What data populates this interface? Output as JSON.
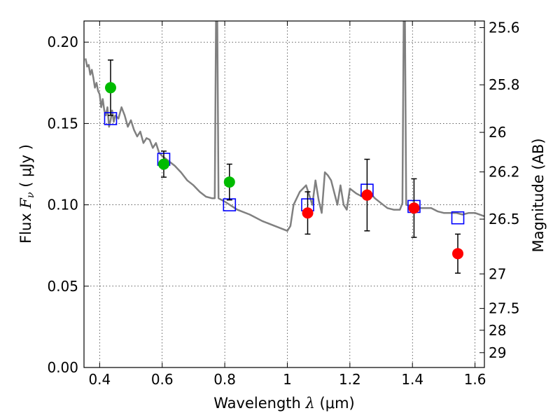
{
  "chart_data": {
    "type": "scatter",
    "xlabel_prefix": "Wavelength",
    "xlabel_symbol": "λ",
    "xlabel_unit": "(μm)",
    "ylabel_prefix": "Flux",
    "ylabel_symbol": "F",
    "ylabel_sub": "ν",
    "ylabel_unit": "( μJy )",
    "y2label": "Magnitude (AB)",
    "xlim": [
      0.35,
      1.63
    ],
    "ylim": [
      0,
      0.213
    ],
    "grid": true,
    "xticks": [
      0.4,
      0.6,
      0.8,
      1.0,
      1.2,
      1.4,
      1.6
    ],
    "xtick_labels": [
      "0.4",
      "0.6",
      "0.8",
      "1",
      "1.2",
      "1.4",
      "1.6"
    ],
    "yticks": [
      0.0,
      0.05,
      0.1,
      0.15,
      0.2
    ],
    "ytick_labels": [
      "0.00",
      "0.05",
      "0.10",
      "0.15",
      "0.20"
    ],
    "mag_ticks": [
      25.6,
      25.8,
      26,
      26.2,
      26.5,
      27,
      27.5,
      28,
      29
    ],
    "mag_tick_labels": [
      "25.6",
      "25.8",
      "26",
      "26.2",
      "26.5",
      "27",
      "27.5",
      "28",
      "29"
    ],
    "series": [
      {
        "style": "line",
        "color": "#808080",
        "x": [
          0.355,
          0.36,
          0.365,
          0.37,
          0.375,
          0.38,
          0.385,
          0.39,
          0.395,
          0.4,
          0.405,
          0.41,
          0.415,
          0.42,
          0.425,
          0.43,
          0.435,
          0.44,
          0.445,
          0.45,
          0.46,
          0.47,
          0.48,
          0.49,
          0.5,
          0.51,
          0.52,
          0.53,
          0.54,
          0.55,
          0.56,
          0.57,
          0.58,
          0.59,
          0.6,
          0.62,
          0.64,
          0.66,
          0.68,
          0.7,
          0.72,
          0.74,
          0.76,
          0.768,
          0.772,
          0.776,
          0.78,
          0.8,
          0.84,
          0.88,
          0.92,
          0.96,
          1.0,
          1.01,
          1.02,
          1.04,
          1.06,
          1.08,
          1.09,
          1.1,
          1.11,
          1.12,
          1.13,
          1.14,
          1.16,
          1.17,
          1.18,
          1.19,
          1.2,
          1.22,
          1.24,
          1.26,
          1.28,
          1.3,
          1.32,
          1.34,
          1.36,
          1.368,
          1.372,
          1.376,
          1.38,
          1.4,
          1.42,
          1.44,
          1.46,
          1.48,
          1.5,
          1.52,
          1.54,
          1.56,
          1.58,
          1.6,
          1.63
        ],
        "y": [
          0.19,
          0.185,
          0.186,
          0.18,
          0.183,
          0.178,
          0.172,
          0.175,
          0.17,
          0.168,
          0.16,
          0.165,
          0.158,
          0.155,
          0.16,
          0.148,
          0.152,
          0.158,
          0.151,
          0.155,
          0.153,
          0.16,
          0.155,
          0.148,
          0.152,
          0.146,
          0.142,
          0.145,
          0.138,
          0.141,
          0.14,
          0.135,
          0.138,
          0.132,
          0.13,
          0.127,
          0.124,
          0.12,
          0.115,
          0.112,
          0.108,
          0.105,
          0.104,
          0.104,
          0.213,
          0.213,
          0.104,
          0.102,
          0.097,
          0.094,
          0.09,
          0.087,
          0.084,
          0.087,
          0.1,
          0.108,
          0.112,
          0.1,
          0.115,
          0.103,
          0.095,
          0.12,
          0.118,
          0.115,
          0.1,
          0.112,
          0.1,
          0.097,
          0.11,
          0.107,
          0.105,
          0.108,
          0.104,
          0.101,
          0.098,
          0.097,
          0.097,
          0.101,
          0.213,
          0.213,
          0.1,
          0.099,
          0.098,
          0.098,
          0.098,
          0.096,
          0.095,
          0.095,
          0.095,
          0.094,
          0.095,
          0.095,
          0.093
        ]
      },
      {
        "style": "open-square",
        "color": "#0000ff",
        "x": [
          0.435,
          0.605,
          0.815,
          1.065,
          1.255,
          1.405,
          1.545
        ],
        "y": [
          0.153,
          0.128,
          0.1,
          0.1,
          0.109,
          0.099,
          0.092
        ]
      },
      {
        "style": "filled-circle",
        "color": "#00bb00",
        "x": [
          0.435,
          0.605,
          0.815
        ],
        "y": [
          0.172,
          0.125,
          0.114
        ],
        "yerr": [
          0.017,
          0.008,
          0.011
        ]
      },
      {
        "style": "filled-circle",
        "color": "#ff0000",
        "x": [
          1.065,
          1.255,
          1.405,
          1.545
        ],
        "y": [
          0.095,
          0.106,
          0.098,
          0.07
        ],
        "yerr": [
          0.013,
          0.022,
          0.018,
          0.012
        ]
      }
    ]
  }
}
